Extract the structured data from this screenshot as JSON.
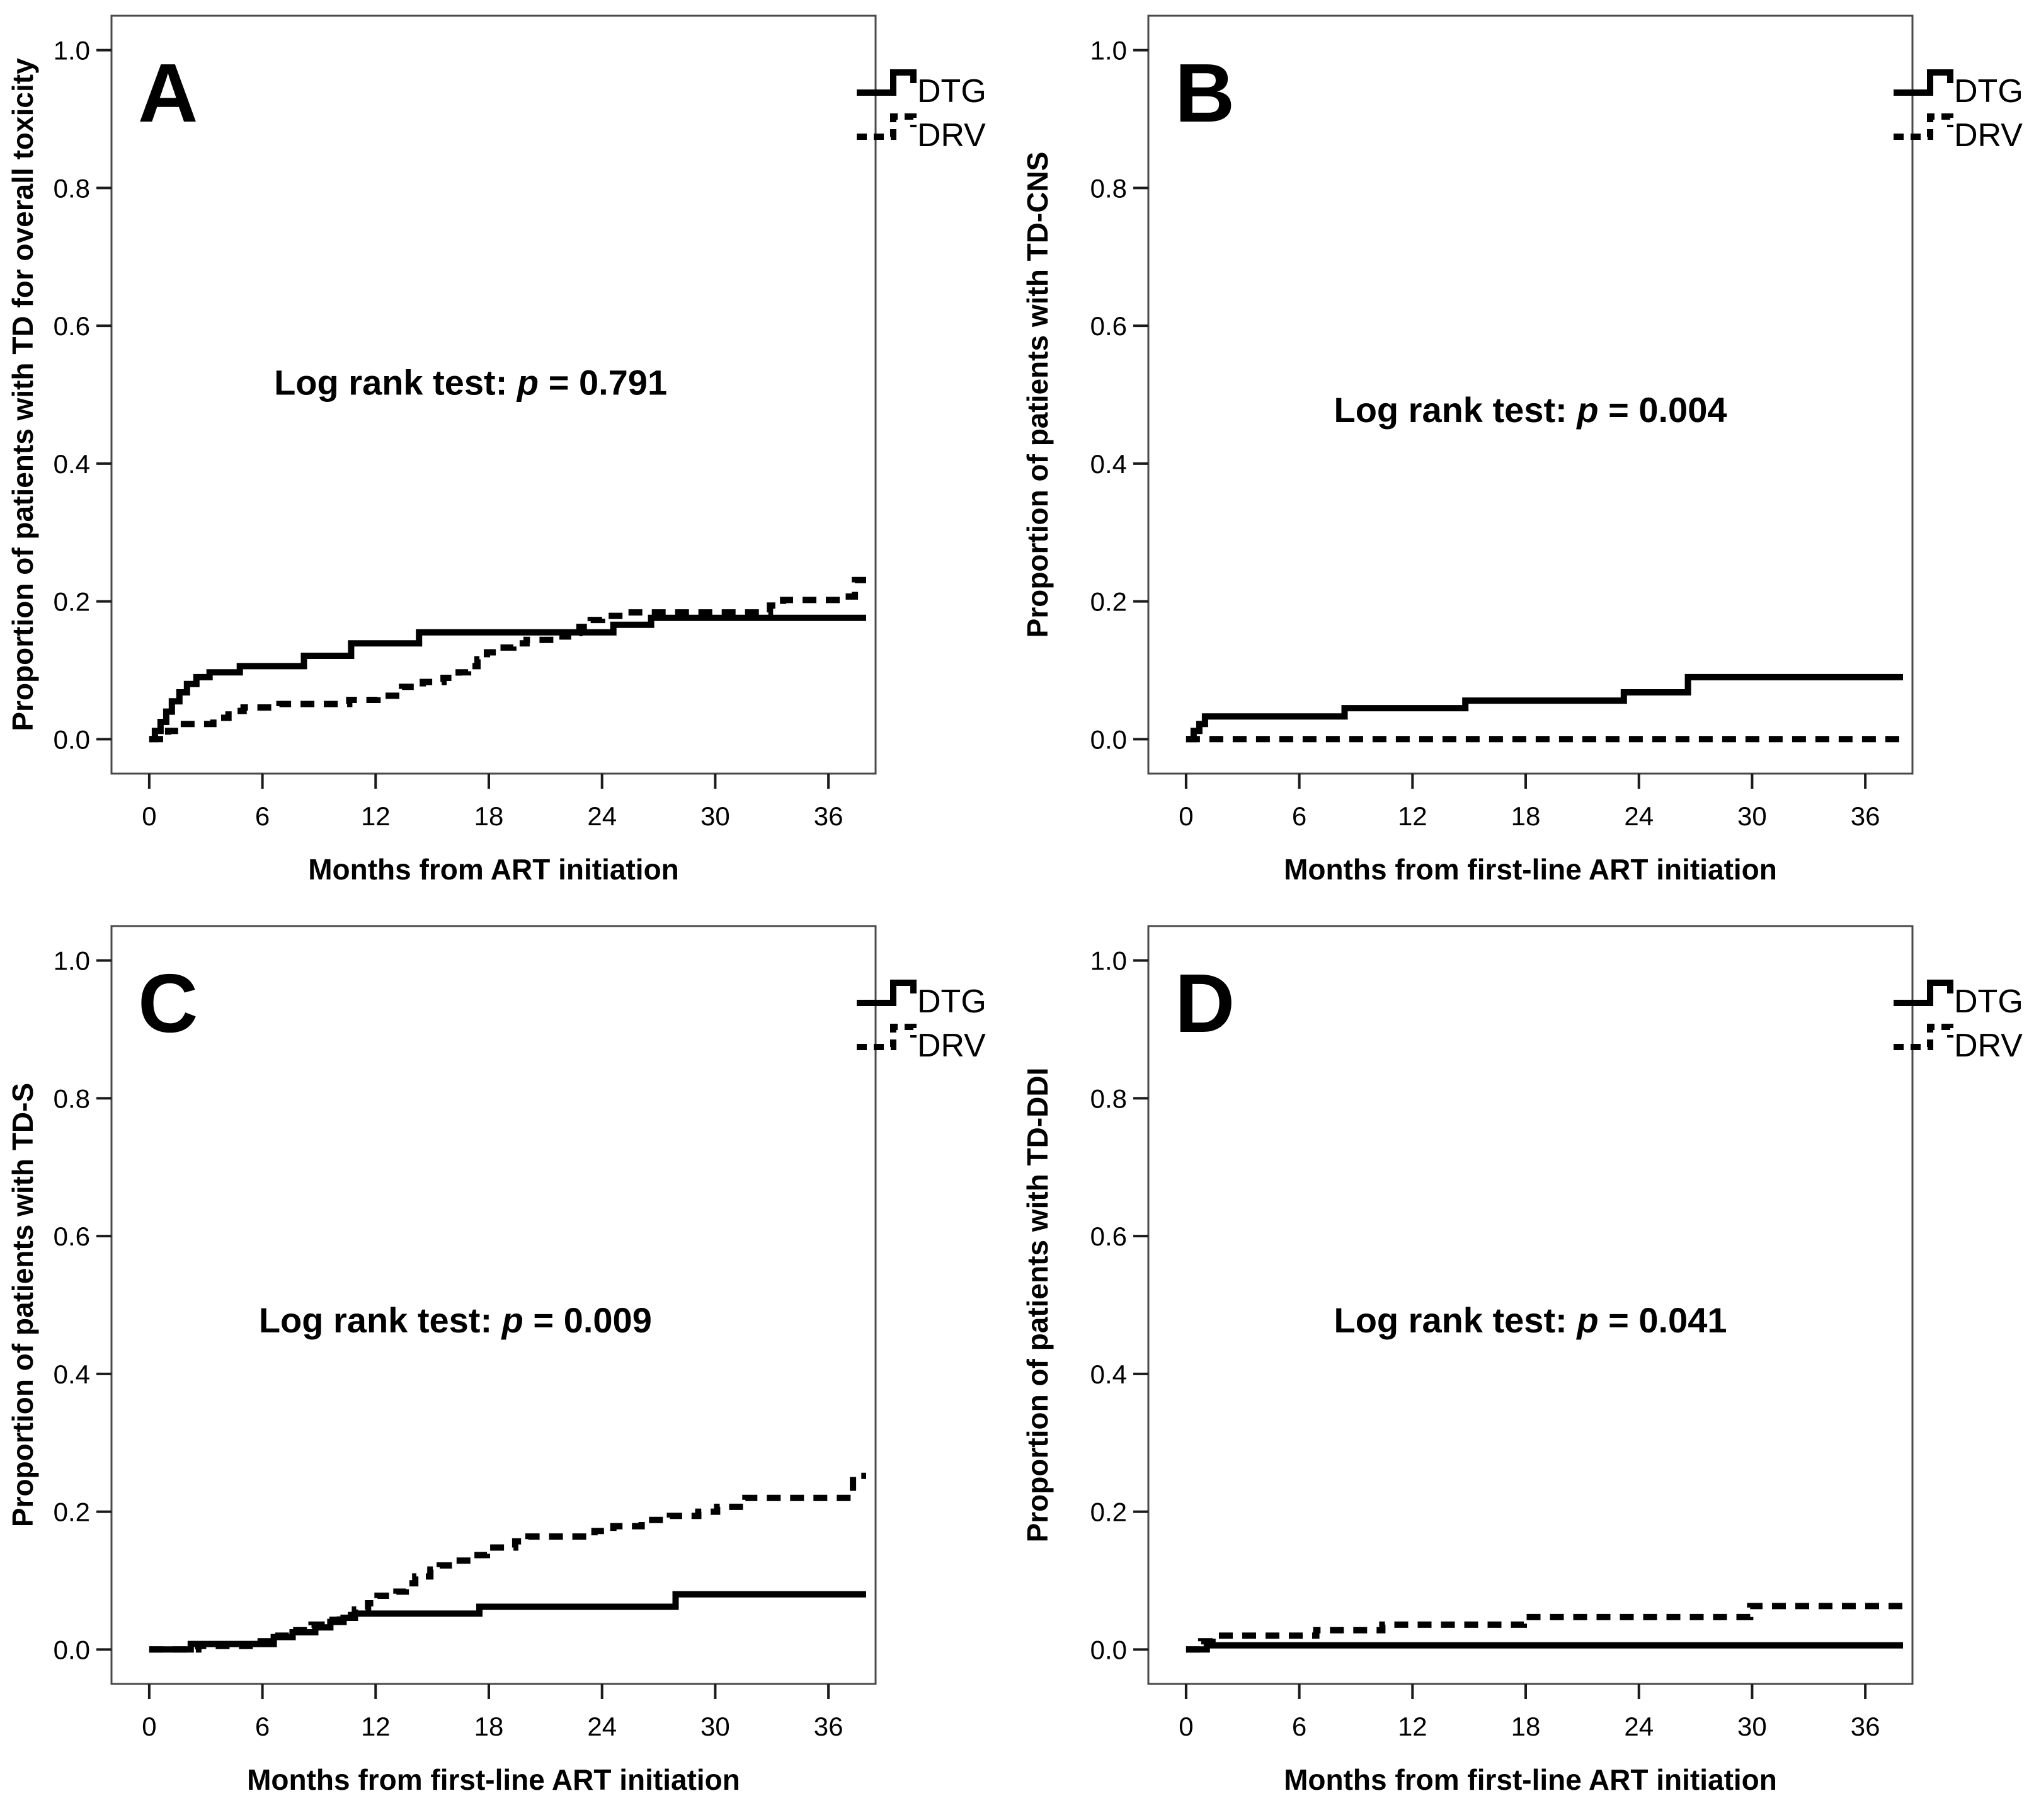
{
  "figure": {
    "description": "Kaplan-Meier cumulative incidence curves of treatment discontinuation, DTG vs DRV, four panels",
    "background": "#ffffff"
  },
  "colors": {
    "curve": "#000000",
    "plot_border": "#4a4a4a",
    "tick": "#1a1a1a",
    "text": "#000000"
  },
  "legend": {
    "items": [
      {
        "label": "DTG",
        "line_style": "solid"
      },
      {
        "label": "DRV",
        "line_style": "dashed"
      }
    ],
    "position": "top-right"
  },
  "chart_data": [
    {
      "type": "line",
      "subtype": "kaplan-meier-step",
      "panel_letter": "A",
      "ylabel": "Proportion of patients with TD for overall toxicity",
      "xlabel": "Months from ART initiation",
      "annotation": {
        "full": "Log rank test: p = 0.791",
        "prefix": "Log rank test: ",
        "p": "p",
        "suffix": " = 0.791",
        "x_frac": 0.47,
        "y_value": 0.5
      },
      "xlim": [
        -2,
        38.5
      ],
      "ylim": [
        -0.05,
        1.05
      ],
      "x_ticks": [
        {
          "value": 0,
          "label": "0"
        },
        {
          "value": 6,
          "label": "6"
        },
        {
          "value": 12,
          "label": "12"
        },
        {
          "value": 18,
          "label": "18"
        },
        {
          "value": 24,
          "label": "24"
        },
        {
          "value": 30,
          "label": "30"
        },
        {
          "value": 36,
          "label": "36"
        }
      ],
      "y_ticks": [
        {
          "value": 1.0,
          "label": "1.0"
        },
        {
          "value": 0.8,
          "label": "0.8"
        },
        {
          "value": 0.6,
          "label": "0.6"
        },
        {
          "value": 0.4,
          "label": "0.4"
        },
        {
          "value": 0.2,
          "label": "0.2"
        },
        {
          "value": 0.0,
          "label": "0.0"
        }
      ],
      "grid": false,
      "legend_position": "top-right",
      "series": [
        {
          "name": "DTG",
          "style": "solid",
          "points": [
            [
              0,
              0
            ],
            [
              0.3,
              0.012
            ],
            [
              0.6,
              0.025
            ],
            [
              0.9,
              0.04
            ],
            [
              1.2,
              0.055
            ],
            [
              1.6,
              0.068
            ],
            [
              2.0,
              0.08
            ],
            [
              2.5,
              0.09
            ],
            [
              3.2,
              0.097
            ],
            [
              4.8,
              0.106
            ],
            [
              8.2,
              0.121
            ],
            [
              10.7,
              0.139
            ],
            [
              14.3,
              0.155
            ],
            [
              24.6,
              0.166
            ],
            [
              26.6,
              0.176
            ],
            [
              38,
              0.176
            ]
          ]
        },
        {
          "name": "DRV",
          "style": "dashed",
          "points": [
            [
              0,
              0
            ],
            [
              1.0,
              0.012
            ],
            [
              1.6,
              0.022
            ],
            [
              3.4,
              0.031
            ],
            [
              4.2,
              0.041
            ],
            [
              5.0,
              0.046
            ],
            [
              6.9,
              0.051
            ],
            [
              10.6,
              0.057
            ],
            [
              12.1,
              0.063
            ],
            [
              13.4,
              0.076
            ],
            [
              14.5,
              0.083
            ],
            [
              15.6,
              0.089
            ],
            [
              16.4,
              0.097
            ],
            [
              16.9,
              0.106
            ],
            [
              17.4,
              0.116
            ],
            [
              17.9,
              0.126
            ],
            [
              18.5,
              0.133
            ],
            [
              19.3,
              0.139
            ],
            [
              20.0,
              0.144
            ],
            [
              21.6,
              0.149
            ],
            [
              22.2,
              0.154
            ],
            [
              22.8,
              0.163
            ],
            [
              23.4,
              0.173
            ],
            [
              24.0,
              0.179
            ],
            [
              25.2,
              0.184
            ],
            [
              32.9,
              0.194
            ],
            [
              33.6,
              0.202
            ],
            [
              36.9,
              0.207
            ],
            [
              37.4,
              0.231
            ],
            [
              38,
              0.231
            ]
          ]
        }
      ]
    },
    {
      "type": "line",
      "subtype": "kaplan-meier-step",
      "panel_letter": "B",
      "ylabel": "Proportion of patients with TD-CNS",
      "xlabel": "Months from first-line ART initiation",
      "annotation": {
        "full": "Log rank test: p = 0.004",
        "prefix": "Log rank test: ",
        "p": "p",
        "suffix": " = 0.004",
        "x_frac": 0.5,
        "y_value": 0.46
      },
      "xlim": [
        -2,
        38.5
      ],
      "ylim": [
        -0.05,
        1.05
      ],
      "x_ticks": [
        {
          "value": 0,
          "label": "0"
        },
        {
          "value": 6,
          "label": "6"
        },
        {
          "value": 12,
          "label": "12"
        },
        {
          "value": 18,
          "label": "18"
        },
        {
          "value": 24,
          "label": "24"
        },
        {
          "value": 30,
          "label": "30"
        },
        {
          "value": 36,
          "label": "36"
        }
      ],
      "y_ticks": [
        {
          "value": 1.0,
          "label": "1.0"
        },
        {
          "value": 0.8,
          "label": "0.8"
        },
        {
          "value": 0.6,
          "label": "0.6"
        },
        {
          "value": 0.4,
          "label": "0.4"
        },
        {
          "value": 0.2,
          "label": "0.2"
        },
        {
          "value": 0.0,
          "label": "0.0"
        }
      ],
      "grid": false,
      "legend_position": "top-right",
      "series": [
        {
          "name": "DTG",
          "style": "solid",
          "points": [
            [
              0,
              0
            ],
            [
              0.4,
              0.012
            ],
            [
              0.7,
              0.022
            ],
            [
              1.0,
              0.033
            ],
            [
              8.4,
              0.045
            ],
            [
              14.8,
              0.056
            ],
            [
              23.2,
              0.068
            ],
            [
              26.6,
              0.09
            ],
            [
              38,
              0.09
            ]
          ]
        },
        {
          "name": "DRV",
          "style": "dashed",
          "points": [
            [
              0,
              0
            ],
            [
              38,
              0
            ]
          ]
        }
      ]
    },
    {
      "type": "line",
      "subtype": "kaplan-meier-step",
      "panel_letter": "C",
      "ylabel": "Proportion of patients with TD-S",
      "xlabel": "Months from first-line ART initiation",
      "annotation": {
        "full": "Log rank test: p = 0.009",
        "prefix": "Log rank test: ",
        "p": "p",
        "suffix": " = 0.009",
        "x_frac": 0.45,
        "y_value": 0.46
      },
      "xlim": [
        -2,
        38.5
      ],
      "ylim": [
        -0.05,
        1.05
      ],
      "x_ticks": [
        {
          "value": 0,
          "label": "0"
        },
        {
          "value": 6,
          "label": "6"
        },
        {
          "value": 12,
          "label": "12"
        },
        {
          "value": 18,
          "label": "18"
        },
        {
          "value": 24,
          "label": "24"
        },
        {
          "value": 30,
          "label": "30"
        },
        {
          "value": 36,
          "label": "36"
        }
      ],
      "y_ticks": [
        {
          "value": 1.0,
          "label": "1.0"
        },
        {
          "value": 0.8,
          "label": "0.8"
        },
        {
          "value": 0.6,
          "label": "0.6"
        },
        {
          "value": 0.4,
          "label": "0.4"
        },
        {
          "value": 0.2,
          "label": "0.2"
        },
        {
          "value": 0.0,
          "label": "0.0"
        }
      ],
      "grid": false,
      "legend_position": "top-right",
      "series": [
        {
          "name": "DTG",
          "style": "solid",
          "points": [
            [
              0,
              0
            ],
            [
              2.2,
              0.008
            ],
            [
              6.6,
              0.018
            ],
            [
              7.6,
              0.025
            ],
            [
              8.8,
              0.032
            ],
            [
              9.6,
              0.04
            ],
            [
              10.3,
              0.046
            ],
            [
              10.9,
              0.052
            ],
            [
              17.5,
              0.062
            ],
            [
              27.9,
              0.08
            ],
            [
              38,
              0.08
            ]
          ]
        },
        {
          "name": "DRV",
          "style": "dashed",
          "points": [
            [
              0,
              0
            ],
            [
              2.6,
              0.005
            ],
            [
              5.6,
              0.012
            ],
            [
              6.6,
              0.02
            ],
            [
              7.4,
              0.028
            ],
            [
              8.6,
              0.036
            ],
            [
              9.4,
              0.043
            ],
            [
              10.1,
              0.05
            ],
            [
              10.9,
              0.058
            ],
            [
              11.6,
              0.067
            ],
            [
              12.1,
              0.078
            ],
            [
              13.1,
              0.084
            ],
            [
              13.6,
              0.096
            ],
            [
              14.1,
              0.106
            ],
            [
              14.9,
              0.116
            ],
            [
              15.4,
              0.122
            ],
            [
              16.1,
              0.129
            ],
            [
              17.1,
              0.137
            ],
            [
              17.9,
              0.148
            ],
            [
              19.4,
              0.157
            ],
            [
              20.1,
              0.164
            ],
            [
              23.6,
              0.172
            ],
            [
              24.6,
              0.179
            ],
            [
              26.1,
              0.188
            ],
            [
              27.6,
              0.194
            ],
            [
              29.1,
              0.2
            ],
            [
              30.1,
              0.207
            ],
            [
              31.6,
              0.22
            ],
            [
              37.3,
              0.252
            ],
            [
              38,
              0.252
            ]
          ]
        }
      ]
    },
    {
      "type": "line",
      "subtype": "kaplan-meier-step",
      "panel_letter": "D",
      "ylabel": "Proportion of patients with TD-DDI",
      "xlabel": "Months from first-line ART initiation",
      "annotation": {
        "full": "Log rank test: p = 0.041",
        "prefix": "Log rank test: ",
        "p": "p",
        "suffix": " = 0.041",
        "x_frac": 0.5,
        "y_value": 0.46
      },
      "xlim": [
        -2,
        38.5
      ],
      "ylim": [
        -0.05,
        1.05
      ],
      "x_ticks": [
        {
          "value": 0,
          "label": "0"
        },
        {
          "value": 6,
          "label": "6"
        },
        {
          "value": 12,
          "label": "12"
        },
        {
          "value": 18,
          "label": "18"
        },
        {
          "value": 24,
          "label": "24"
        },
        {
          "value": 30,
          "label": "30"
        },
        {
          "value": 36,
          "label": "36"
        }
      ],
      "y_ticks": [
        {
          "value": 1.0,
          "label": "1.0"
        },
        {
          "value": 0.8,
          "label": "0.8"
        },
        {
          "value": 0.6,
          "label": "0.6"
        },
        {
          "value": 0.4,
          "label": "0.4"
        },
        {
          "value": 0.2,
          "label": "0.2"
        },
        {
          "value": 0.0,
          "label": "0.0"
        }
      ],
      "grid": false,
      "legend_position": "top-right",
      "series": [
        {
          "name": "DTG",
          "style": "solid",
          "points": [
            [
              0,
              0
            ],
            [
              1.1,
              0.006
            ],
            [
              38,
              0.006
            ]
          ]
        },
        {
          "name": "DRV",
          "style": "dashed",
          "points": [
            [
              0,
              0
            ],
            [
              0.8,
              0.012
            ],
            [
              1.4,
              0.02
            ],
            [
              6.9,
              0.028
            ],
            [
              10.4,
              0.036
            ],
            [
              17.9,
              0.047
            ],
            [
              29.9,
              0.063
            ],
            [
              38,
              0.063
            ]
          ]
        }
      ]
    }
  ]
}
